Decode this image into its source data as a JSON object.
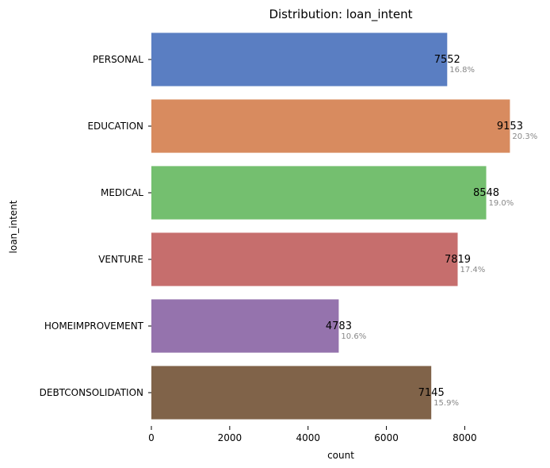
{
  "chart_data": {
    "type": "bar",
    "orientation": "horizontal",
    "title": "Distribution: loan_intent",
    "xlabel": "count",
    "ylabel": "loan_intent",
    "xlim": [
      0,
      9650
    ],
    "xticks": [
      0,
      2000,
      4000,
      6000,
      8000
    ],
    "grid": false,
    "categories": [
      "PERSONAL",
      "EDUCATION",
      "MEDICAL",
      "VENTURE",
      "HOMEIMPROVEMENT",
      "DEBTCONSOLIDATION"
    ],
    "values": [
      7552,
      9153,
      8548,
      7819,
      4783,
      7145
    ],
    "percent_labels": [
      "16.8%",
      "20.3%",
      "19.0%",
      "17.4%",
      "10.6%",
      "15.9%"
    ],
    "colors": [
      "#5a7ec2",
      "#d88b5f",
      "#74bf6f",
      "#c66e6d",
      "#9573ad",
      "#806349"
    ]
  }
}
